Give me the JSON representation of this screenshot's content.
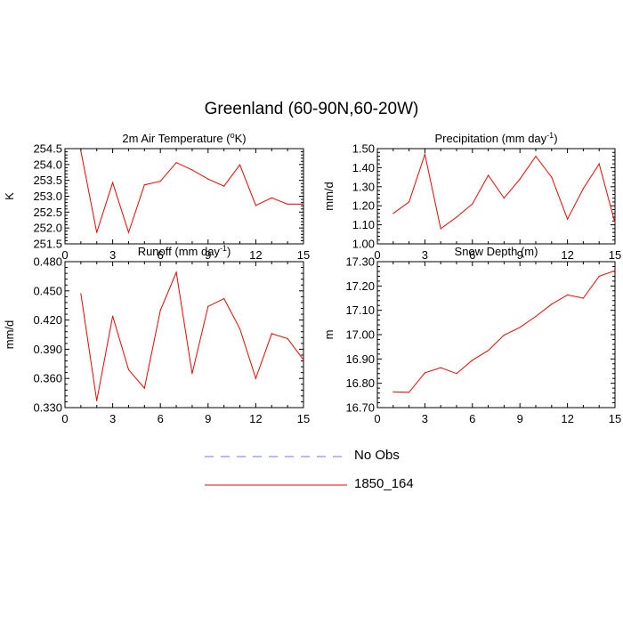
{
  "title": "Greenland (60-90N,60-20W)",
  "chart_data": [
    {
      "type": "line",
      "title": "2m Air Temperature (°K)",
      "title_parts": [
        "2m Air Temperature (",
        "o",
        "K)"
      ],
      "ylabel": "K",
      "xlim": [
        0,
        15
      ],
      "ylim": [
        251.5,
        254.5
      ],
      "xticks": [
        0,
        3,
        6,
        9,
        12,
        15
      ],
      "xtick_labels": [
        "0",
        "3",
        "6",
        "9",
        "12",
        "15"
      ],
      "yticks": [
        251.5,
        252.0,
        252.5,
        253.0,
        253.5,
        254.0,
        254.5
      ],
      "ytick_labels": [
        "251.5",
        "252.0",
        "252.5",
        "253.0",
        "253.5",
        "254.0",
        "254.5"
      ],
      "series": [
        {
          "name": "1850_164",
          "color": "#ff0000",
          "x": [
            1,
            2,
            3,
            4,
            5,
            6,
            7,
            8,
            9,
            10,
            11,
            12,
            13,
            14,
            15
          ],
          "y": [
            254.42,
            251.86,
            253.43,
            251.86,
            253.36,
            253.47,
            254.06,
            253.83,
            253.54,
            253.32,
            253.99,
            252.71,
            252.95,
            252.75,
            252.75
          ]
        }
      ]
    },
    {
      "type": "line",
      "title": "Precipitation (mm day-1)",
      "title_parts": [
        "Precipitation (mm day",
        "-1",
        ")"
      ],
      "ylabel": "mm/d",
      "xlim": [
        0,
        15
      ],
      "ylim": [
        1.0,
        1.5
      ],
      "xticks": [
        0,
        3,
        6,
        9,
        12,
        15
      ],
      "xtick_labels": [
        "0",
        "3",
        "6",
        "9",
        "12",
        "15"
      ],
      "yticks": [
        1.0,
        1.1,
        1.2,
        1.3,
        1.4,
        1.5
      ],
      "ytick_labels": [
        "1.00",
        "1.10",
        "1.20",
        "1.30",
        "1.40",
        "1.50"
      ],
      "series": [
        {
          "name": "1850_164",
          "color": "#ff0000",
          "x": [
            1,
            2,
            3,
            4,
            5,
            6,
            7,
            8,
            9,
            10,
            11,
            12,
            13,
            14,
            15
          ],
          "y": [
            1.16,
            1.22,
            1.47,
            1.08,
            1.14,
            1.21,
            1.36,
            1.24,
            1.34,
            1.46,
            1.35,
            1.13,
            1.29,
            1.42,
            1.11
          ]
        }
      ]
    },
    {
      "type": "line",
      "title": "Runoff (mm day-1)",
      "title_parts": [
        "Runoff (mm day",
        "-1",
        ")"
      ],
      "ylabel": "mm/d",
      "xlim": [
        0,
        15
      ],
      "ylim": [
        0.33,
        0.48
      ],
      "xticks": [
        0,
        3,
        6,
        9,
        12,
        15
      ],
      "xtick_labels": [
        "0",
        "3",
        "6",
        "9",
        "12",
        "15"
      ],
      "yticks": [
        0.33,
        0.36,
        0.39,
        0.42,
        0.45,
        0.48
      ],
      "ytick_labels": [
        "0.330",
        "0.360",
        "0.390",
        "0.420",
        "0.450",
        "0.480"
      ],
      "series": [
        {
          "name": "1850_164",
          "color": "#ff0000",
          "x": [
            1,
            2,
            3,
            4,
            5,
            6,
            7,
            8,
            9,
            10,
            11,
            12,
            13,
            14,
            15
          ],
          "y": [
            0.447,
            0.337,
            0.424,
            0.369,
            0.35,
            0.43,
            0.469,
            0.365,
            0.434,
            0.442,
            0.411,
            0.36,
            0.406,
            0.401,
            0.379
          ]
        }
      ]
    },
    {
      "type": "line",
      "title": "Snow Depth (m)",
      "title_parts": [
        "Snow Depth (m)",
        "",
        ""
      ],
      "ylabel": "m",
      "xlim": [
        0,
        15
      ],
      "ylim": [
        16.7,
        17.3
      ],
      "xticks": [
        0,
        3,
        6,
        9,
        12,
        15
      ],
      "xtick_labels": [
        "0",
        "3",
        "6",
        "9",
        "12",
        "15"
      ],
      "yticks": [
        16.7,
        16.8,
        16.9,
        17.0,
        17.1,
        17.2,
        17.3
      ],
      "ytick_labels": [
        "16.70",
        "16.80",
        "16.90",
        "17.00",
        "17.10",
        "17.20",
        "17.30"
      ],
      "series": [
        {
          "name": "1850_164",
          "color": "#ff0000",
          "x": [
            1,
            2,
            3,
            4,
            5,
            6,
            7,
            8,
            9,
            10,
            11,
            12,
            13,
            14,
            15
          ],
          "y": [
            16.765,
            16.763,
            16.843,
            16.864,
            16.84,
            16.895,
            16.935,
            16.998,
            17.03,
            17.075,
            17.125,
            17.163,
            17.15,
            17.24,
            17.263
          ]
        }
      ]
    }
  ],
  "legend": [
    {
      "label": "No Obs",
      "color": "#7070ff",
      "style": "dashed"
    },
    {
      "label": "1850_164",
      "color": "#ff0000",
      "style": "solid"
    }
  ]
}
